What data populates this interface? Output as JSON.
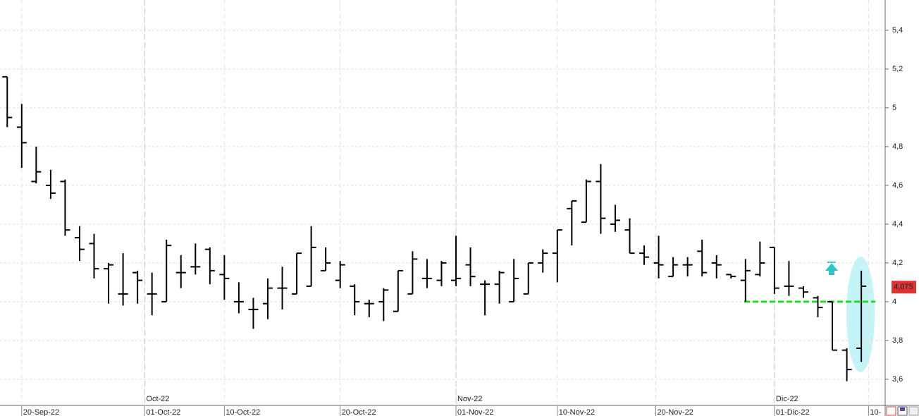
{
  "chart_data": {
    "type": "ohlc",
    "open": [
      5.16,
      4.9,
      4.62,
      4.6,
      4.62,
      4.33,
      4.3,
      4.17,
      4.04,
      4.15,
      4.04,
      4.0,
      4.15,
      4.18,
      4.27,
      4.14,
      4.0,
      3.96,
      3.99,
      4.07,
      4.04,
      4.08,
      4.16,
      4.11,
      4.08,
      3.99,
      4.0,
      3.95,
      4.04,
      4.12,
      4.11,
      4.11,
      4.19,
      4.09,
      4.09,
      4.0,
      4.04,
      4.2,
      4.25,
      4.48,
      4.41,
      4.62,
      4.4,
      4.37,
      4.25,
      4.2,
      4.13,
      4.19,
      4.26,
      4.2,
      4.14,
      4.11,
      4.14,
      4.28,
      4.08,
      4.07,
      4.02,
      4.0,
      3.75,
      3.76
    ],
    "high": [
      5.16,
      5.02,
      4.8,
      4.68,
      4.63,
      4.39,
      4.35,
      4.2,
      4.25,
      4.16,
      4.15,
      4.32,
      4.24,
      4.3,
      4.28,
      4.24,
      4.1,
      4.02,
      4.12,
      4.18,
      4.25,
      4.39,
      4.28,
      4.21,
      4.09,
      4.01,
      4.07,
      4.16,
      4.26,
      4.22,
      4.21,
      4.34,
      4.28,
      4.11,
      4.16,
      4.22,
      4.2,
      4.27,
      4.37,
      4.52,
      4.63,
      4.71,
      4.5,
      4.43,
      4.29,
      4.34,
      4.23,
      4.23,
      4.32,
      4.24,
      4.14,
      4.22,
      4.31,
      4.28,
      4.21,
      4.08,
      4.03,
      4.0,
      3.76,
      4.16
    ],
    "low": [
      4.9,
      4.69,
      4.61,
      4.53,
      4.34,
      4.21,
      4.12,
      3.99,
      3.98,
      3.99,
      3.93,
      4.0,
      4.07,
      4.14,
      4.09,
      4.01,
      3.94,
      3.86,
      3.91,
      3.96,
      4.04,
      4.08,
      4.16,
      4.07,
      3.93,
      3.92,
      3.9,
      3.95,
      4.04,
      4.07,
      4.08,
      4.08,
      4.08,
      3.93,
      3.99,
      4.0,
      4.04,
      4.15,
      4.1,
      4.29,
      4.41,
      4.35,
      4.36,
      4.25,
      4.19,
      4.12,
      4.13,
      4.13,
      4.13,
      4.12,
      4.12,
      4.0,
      4.13,
      4.04,
      4.03,
      4.02,
      3.92,
      3.75,
      3.59,
      3.69
    ],
    "close": [
      4.95,
      4.82,
      4.67,
      4.56,
      4.37,
      4.27,
      4.17,
      4.19,
      4.04,
      4.11,
      4.04,
      4.29,
      4.15,
      4.18,
      4.16,
      4.12,
      4.0,
      3.96,
      4.07,
      4.07,
      4.25,
      4.28,
      4.2,
      4.19,
      4.0,
      3.99,
      4.06,
      4.16,
      4.22,
      4.12,
      4.2,
      4.12,
      4.13,
      4.09,
      4.15,
      4.12,
      4.2,
      4.25,
      4.37,
      4.52,
      4.62,
      4.43,
      4.42,
      4.25,
      4.23,
      4.19,
      4.19,
      4.19,
      4.15,
      4.19,
      4.13,
      4.16,
      4.2,
      4.07,
      4.08,
      4.05,
      3.97,
      3.75,
      3.65,
      4.08
    ],
    "color": "#000000",
    "xlim": [
      -0.5,
      60.6
    ],
    "xticks": [
      {
        "value": 1,
        "label": "20-Sep-22"
      },
      {
        "value": 9.5,
        "label": "01-Oct-22"
      },
      {
        "value": 15,
        "label": "10-Oct-22"
      },
      {
        "value": 23,
        "label": "20-Oct-22"
      },
      {
        "value": 31,
        "label": "01-Nov-22"
      },
      {
        "value": 38,
        "label": "10-Nov-22"
      },
      {
        "value": 44.8,
        "label": "20-Nov-22"
      },
      {
        "value": 53,
        "label": "01-Dic-22"
      },
      {
        "value": 59.5,
        "label": "10-"
      }
    ],
    "month_ticks": [
      {
        "value": 9.5,
        "label": "Oct-22"
      },
      {
        "value": 31,
        "label": "Nov-22"
      },
      {
        "value": 53,
        "label": "Dic-22"
      }
    ],
    "ylim": [
      3.465,
      5.556
    ],
    "yticks": [
      {
        "value": 3.6,
        "label": "3,6"
      },
      {
        "value": 3.8,
        "label": "3,8"
      },
      4,
      {
        "value": 4.2,
        "label": "4,2"
      },
      {
        "value": 4.4,
        "label": "4,4"
      },
      {
        "value": 4.6,
        "label": "4,6"
      },
      {
        "value": 4.8,
        "label": "4,8"
      },
      5,
      {
        "value": 5.2,
        "label": "5,2"
      },
      {
        "value": 5.4,
        "label": "5,4"
      }
    ],
    "grid": true,
    "support_level": 4,
    "support_color": "#22dd22",
    "last_price": {
      "value": 4.075,
      "label": "4,075"
    },
    "last_price_color": "#e03030"
  }
}
